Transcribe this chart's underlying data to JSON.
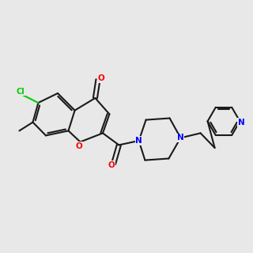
{
  "background_color": "#e8e8e8",
  "bond_color": "#1a1a1a",
  "O_color": "#ff0000",
  "N_color": "#0000ff",
  "Cl_color": "#00cc00",
  "bond_width": 1.5,
  "font_size": 7.5,
  "fig_width": 3.0,
  "fig_height": 3.0,
  "xlim": [
    0,
    10
  ],
  "ylim": [
    0,
    10
  ]
}
